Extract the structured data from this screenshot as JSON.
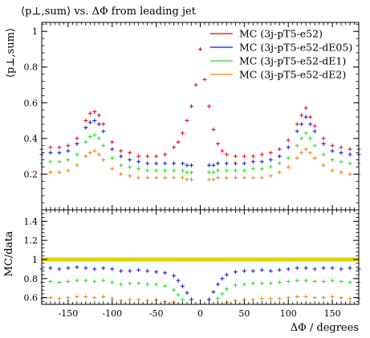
{
  "title": "⟨p⊥,sum⟩ vs. ΔΦ from leading jet",
  "chart_data": [
    {
      "type": "scatter",
      "panel": "main",
      "ylabel": "⟨p⊥,sum⟩",
      "xlim": [
        -180,
        180
      ],
      "ylim": [
        0,
        1.05
      ],
      "x_ticks": [
        -150,
        -100,
        -50,
        0,
        50,
        100,
        150
      ],
      "y_ticks": [
        0.2,
        0.4,
        0.6,
        0.8,
        1
      ],
      "y_tick_labels": [
        "0.2",
        "0.4",
        "0.6",
        "0.8",
        "1"
      ],
      "legend_position": "top-right",
      "series": [
        {
          "name": "MC (3j-pT5-e52)",
          "color": "#e8000b",
          "x": [
            -180,
            -170,
            -160,
            -150,
            -140,
            -130,
            -125,
            -120,
            -115,
            -110,
            -100,
            -90,
            -80,
            -70,
            -60,
            -50,
            -40,
            -30,
            -25,
            -20,
            -15,
            -10,
            -5,
            0,
            5,
            10,
            15,
            20,
            25,
            30,
            40,
            50,
            60,
            70,
            80,
            90,
            100,
            110,
            115,
            120,
            125,
            130,
            140,
            150,
            160,
            170,
            180
          ],
          "y": [
            0.34,
            0.35,
            0.35,
            0.36,
            0.4,
            0.5,
            0.54,
            0.55,
            0.53,
            0.48,
            0.38,
            0.33,
            0.32,
            0.3,
            0.3,
            0.3,
            0.31,
            0.35,
            0.38,
            0.43,
            0.5,
            0.58,
            0.7,
            0.9,
            0.73,
            0.58,
            0.45,
            0.37,
            0.33,
            0.31,
            0.3,
            0.3,
            0.3,
            0.31,
            0.32,
            0.34,
            0.39,
            0.48,
            0.53,
            0.57,
            0.52,
            0.47,
            0.4,
            0.36,
            0.35,
            0.34,
            0.34
          ]
        },
        {
          "name": "MC (3j-pT5-e52-dE05)",
          "color": "#0a14e8",
          "x": [
            -180,
            -170,
            -160,
            -150,
            -140,
            -130,
            -125,
            -120,
            -115,
            -110,
            -100,
            -90,
            -80,
            -70,
            -60,
            -50,
            -40,
            -30,
            -20,
            -15,
            -10,
            10,
            15,
            20,
            30,
            40,
            50,
            60,
            70,
            80,
            90,
            100,
            110,
            115,
            120,
            125,
            130,
            140,
            150,
            160,
            170,
            180
          ],
          "y": [
            0.31,
            0.32,
            0.32,
            0.33,
            0.37,
            0.46,
            0.49,
            0.5,
            0.48,
            0.44,
            0.34,
            0.3,
            0.28,
            0.27,
            0.26,
            0.26,
            0.26,
            0.26,
            0.26,
            0.25,
            0.25,
            0.25,
            0.25,
            0.26,
            0.26,
            0.26,
            0.26,
            0.27,
            0.27,
            0.28,
            0.3,
            0.35,
            0.44,
            0.48,
            0.52,
            0.48,
            0.44,
            0.37,
            0.33,
            0.32,
            0.31,
            0.31
          ]
        },
        {
          "name": "MC (3j-pT5-e52-dE1)",
          "color": "#22dd22",
          "x": [
            -180,
            -170,
            -160,
            -150,
            -140,
            -130,
            -125,
            -120,
            -115,
            -110,
            -100,
            -90,
            -80,
            -70,
            -60,
            -50,
            -40,
            -30,
            -20,
            -15,
            -10,
            10,
            15,
            20,
            30,
            40,
            50,
            60,
            70,
            80,
            90,
            100,
            110,
            115,
            120,
            125,
            130,
            140,
            150,
            160,
            170,
            180
          ],
          "y": [
            0.26,
            0.27,
            0.27,
            0.28,
            0.31,
            0.38,
            0.41,
            0.42,
            0.4,
            0.36,
            0.29,
            0.25,
            0.24,
            0.23,
            0.22,
            0.22,
            0.22,
            0.22,
            0.22,
            0.21,
            0.21,
            0.21,
            0.21,
            0.22,
            0.22,
            0.22,
            0.22,
            0.23,
            0.23,
            0.24,
            0.26,
            0.29,
            0.36,
            0.4,
            0.43,
            0.4,
            0.36,
            0.31,
            0.28,
            0.27,
            0.26,
            0.26
          ]
        },
        {
          "name": "MC (3j-pT5-e52-dE2)",
          "color": "#f07f0c",
          "x": [
            -180,
            -170,
            -160,
            -150,
            -140,
            -130,
            -125,
            -120,
            -115,
            -110,
            -100,
            -90,
            -80,
            -70,
            -60,
            -50,
            -40,
            -30,
            -20,
            -15,
            -10,
            10,
            15,
            20,
            30,
            40,
            50,
            60,
            70,
            80,
            90,
            100,
            110,
            115,
            120,
            125,
            130,
            140,
            150,
            160,
            170,
            180
          ],
          "y": [
            0.2,
            0.21,
            0.21,
            0.22,
            0.25,
            0.3,
            0.32,
            0.33,
            0.31,
            0.28,
            0.23,
            0.2,
            0.19,
            0.18,
            0.18,
            0.18,
            0.18,
            0.18,
            0.18,
            0.17,
            0.17,
            0.17,
            0.17,
            0.18,
            0.18,
            0.18,
            0.18,
            0.18,
            0.18,
            0.19,
            0.21,
            0.24,
            0.29,
            0.32,
            0.34,
            0.32,
            0.29,
            0.25,
            0.22,
            0.21,
            0.2,
            0.2
          ]
        }
      ]
    },
    {
      "type": "scatter",
      "panel": "ratio",
      "xlabel": "ΔΦ / degrees",
      "ylabel": "MC/data",
      "xlim": [
        -180,
        180
      ],
      "ylim": [
        0.53,
        1.52
      ],
      "x_ticks": [
        -150,
        -100,
        -50,
        0,
        50,
        100,
        150
      ],
      "x_tick_labels": [
        "-150",
        "-100",
        "-50",
        "0",
        "50",
        "100",
        "150"
      ],
      "y_ticks": [
        0.6,
        0.8,
        1,
        1.2,
        1.4
      ],
      "y_tick_labels": [
        "0.6",
        "0.8",
        "1",
        "1.2",
        "1.4"
      ],
      "reference_band": {
        "value": 1.0,
        "color": "#e6d200"
      },
      "series": [
        {
          "name": "MC (3j-pT5-e52-dE05)",
          "color": "#0a14e8",
          "x": [
            -180,
            -170,
            -160,
            -150,
            -140,
            -130,
            -120,
            -110,
            -100,
            -90,
            -80,
            -70,
            -60,
            -50,
            -40,
            -30,
            -25,
            -20,
            -15,
            -10,
            10,
            15,
            20,
            25,
            30,
            40,
            50,
            60,
            70,
            80,
            90,
            100,
            110,
            120,
            130,
            140,
            150,
            160,
            170,
            180
          ],
          "y": [
            0.9,
            0.91,
            0.9,
            0.91,
            0.92,
            0.91,
            0.9,
            0.91,
            0.9,
            0.88,
            0.88,
            0.89,
            0.88,
            0.87,
            0.86,
            0.83,
            0.78,
            0.72,
            0.65,
            0.58,
            0.58,
            0.66,
            0.74,
            0.8,
            0.84,
            0.87,
            0.88,
            0.88,
            0.89,
            0.88,
            0.89,
            0.9,
            0.91,
            0.91,
            0.9,
            0.91,
            0.91,
            0.9,
            0.91,
            0.9
          ]
        },
        {
          "name": "MC (3j-pT5-e52-dE1)",
          "color": "#22dd22",
          "x": [
            -180,
            -170,
            -160,
            -150,
            -140,
            -130,
            -120,
            -110,
            -100,
            -90,
            -80,
            -70,
            -60,
            -50,
            -40,
            -30,
            -25,
            -20,
            20,
            25,
            30,
            40,
            50,
            60,
            70,
            80,
            90,
            100,
            110,
            120,
            130,
            140,
            150,
            160,
            170,
            180
          ],
          "y": [
            0.76,
            0.77,
            0.76,
            0.77,
            0.78,
            0.78,
            0.77,
            0.78,
            0.76,
            0.74,
            0.75,
            0.75,
            0.74,
            0.74,
            0.72,
            0.68,
            0.63,
            0.58,
            0.59,
            0.64,
            0.69,
            0.73,
            0.74,
            0.75,
            0.75,
            0.75,
            0.76,
            0.77,
            0.78,
            0.78,
            0.77,
            0.77,
            0.78,
            0.77,
            0.76,
            0.76
          ]
        },
        {
          "name": "MC (3j-pT5-e52-dE2)",
          "color": "#f07f0c",
          "x": [
            -180,
            -170,
            -160,
            -150,
            -140,
            -130,
            -120,
            -110,
            -100,
            -90,
            -80,
            -70,
            -60,
            -50,
            -40,
            -30,
            30,
            40,
            50,
            60,
            70,
            80,
            90,
            100,
            110,
            120,
            130,
            140,
            150,
            160,
            170,
            180
          ],
          "y": [
            0.59,
            0.6,
            0.59,
            0.6,
            0.61,
            0.61,
            0.6,
            0.61,
            0.59,
            0.57,
            0.58,
            0.58,
            0.57,
            0.58,
            0.56,
            0.55,
            0.55,
            0.57,
            0.58,
            0.58,
            0.59,
            0.59,
            0.59,
            0.6,
            0.61,
            0.61,
            0.6,
            0.6,
            0.61,
            0.6,
            0.59,
            0.59
          ]
        }
      ]
    }
  ]
}
